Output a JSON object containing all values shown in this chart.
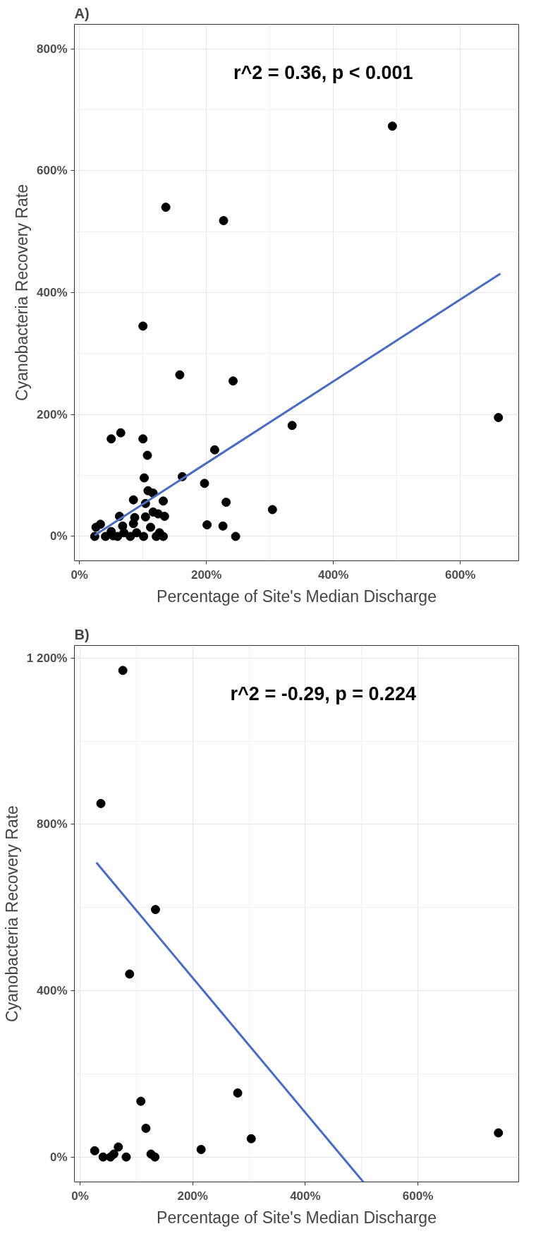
{
  "chart_data": [
    {
      "type": "scatter",
      "title": "A)",
      "xlabel": "Percentage of Site's Median Discharge",
      "ylabel": "Cyanobacteria Recovery Rate",
      "annotations": [
        "r^2 = 0.36, p < 0.001"
      ],
      "xlim": [
        -8,
        692
      ],
      "ylim": [
        -40,
        840
      ],
      "xticks": [
        {
          "value": 0,
          "label": "0%"
        },
        {
          "value": 200,
          "label": "200%"
        },
        {
          "value": 400,
          "label": "400%"
        },
        {
          "value": 600,
          "label": "600%"
        }
      ],
      "yticks": [
        {
          "value": 0,
          "label": "0%"
        },
        {
          "value": 200,
          "label": "200%"
        },
        {
          "value": 400,
          "label": "400%"
        },
        {
          "value": 600,
          "label": "600%"
        },
        {
          "value": 800,
          "label": "800%"
        }
      ],
      "grid": true,
      "series": [
        {
          "marker": "circle",
          "color": "#000000",
          "x": [
            493,
            227,
            136,
            100,
            158,
            242,
            335,
            660,
            304,
            246,
            231,
            226,
            201,
            213,
            197,
            162,
            132,
            134,
            132,
            126,
            121,
            124,
            116,
            116,
            108,
            104,
            104,
            112,
            107,
            102,
            100,
            101,
            85,
            87,
            85,
            90,
            80,
            63,
            68,
            70,
            60,
            50,
            41,
            33,
            26,
            24,
            53,
            65,
            50
          ],
          "values": [
            673,
            518,
            540,
            345,
            265,
            255,
            182,
            195,
            44,
            0,
            56,
            17,
            19,
            142,
            87,
            98,
            58,
            33,
            0,
            6,
            0,
            37,
            40,
            71,
            75,
            54,
            32,
            15,
            133,
            96,
            160,
            0,
            60,
            31,
            21,
            6,
            0,
            33,
            17,
            6,
            0,
            8,
            0,
            20,
            15,
            0,
            1,
            170,
            160
          ]
        },
        {
          "type": "line",
          "color": "#4a6bbf",
          "x": [
            24,
            663
          ],
          "values": [
            2,
            431
          ]
        }
      ]
    },
    {
      "type": "scatter",
      "title": "B)",
      "xlabel": "Percentage of Site's Median Discharge",
      "ylabel": "Cyanobacteria Recovery Rate",
      "annotations": [
        "r^2 = -0.29, p = 0.224"
      ],
      "xlim": [
        -10,
        779
      ],
      "ylim": [
        -60,
        1230
      ],
      "xticks": [
        {
          "value": 0,
          "label": "0%"
        },
        {
          "value": 200,
          "label": "200%"
        },
        {
          "value": 400,
          "label": "400%"
        },
        {
          "value": 600,
          "label": "600%"
        }
      ],
      "yticks": [
        {
          "value": 0,
          "label": "0%"
        },
        {
          "value": 400,
          "label": "400%"
        },
        {
          "value": 800,
          "label": "800%"
        },
        {
          "value": 1200,
          "label": "1 200%"
        }
      ],
      "grid": true,
      "series": [
        {
          "marker": "circle",
          "color": "#000000",
          "x": [
            743,
            304,
            280,
            215,
            133,
            126,
            117,
            108,
            88,
            82,
            68,
            60,
            54,
            41,
            26,
            134,
            37,
            76
          ],
          "values": [
            58,
            44,
            154,
            18,
            0,
            7,
            69,
            134,
            440,
            0,
            24,
            7,
            0,
            0,
            15,
            595,
            850,
            1170
          ]
        },
        {
          "type": "line",
          "color": "#4a6bbf",
          "x": [
            29,
            503
          ],
          "values": [
            708,
            -60
          ]
        }
      ]
    }
  ]
}
